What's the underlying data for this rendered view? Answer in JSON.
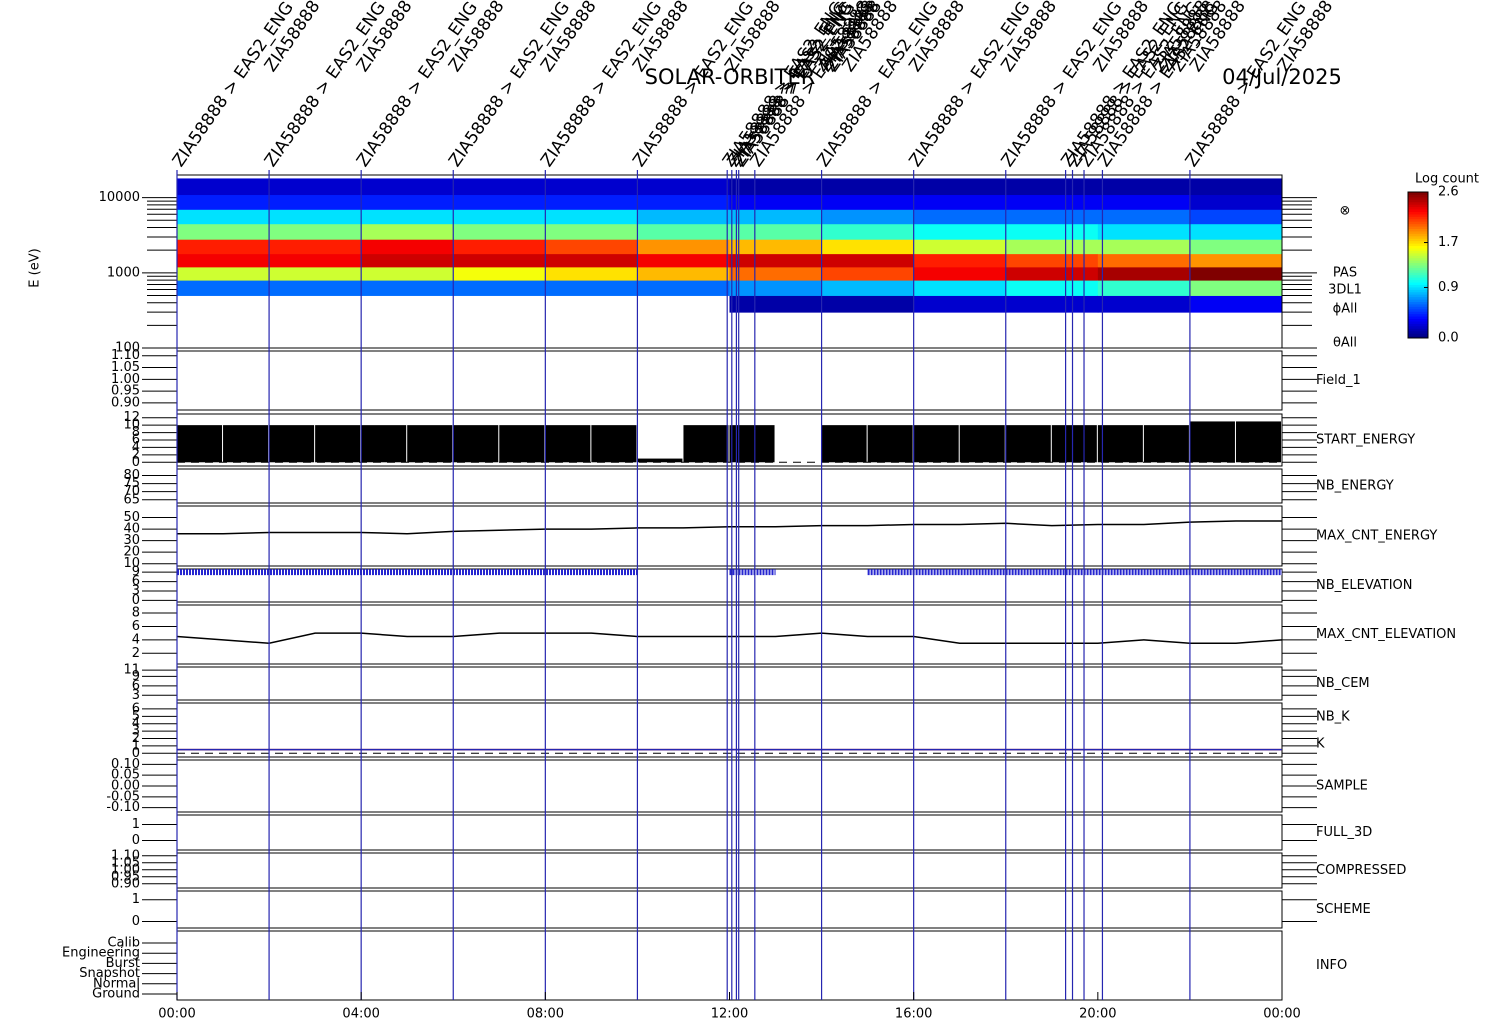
{
  "header": {
    "title": "SOLAR-ORBITER",
    "date": "04/Jul/2025"
  },
  "time_axis": {
    "xlim": [
      0,
      24
    ],
    "xticks": [
      {
        "value": 0,
        "label": "00:00"
      },
      {
        "value": 4,
        "label": "04:00"
      },
      {
        "value": 8,
        "label": "08:00"
      },
      {
        "value": 12,
        "label": "12:00"
      },
      {
        "value": 16,
        "label": "16:00"
      },
      {
        "value": 20,
        "label": "20:00"
      },
      {
        "value": 24,
        "label": "00:00"
      }
    ]
  },
  "events": [
    {
      "time": 0,
      "label": "ZIA58888 > EAS2_ENG"
    },
    {
      "time": 2,
      "label": "ZIA58888 > EAS2_ENG"
    },
    {
      "time": 4,
      "label": "ZIA58888 > EAS2_ENG"
    },
    {
      "time": 6,
      "label": "ZIA58888 > EAS2_ENG"
    },
    {
      "time": 8,
      "label": "ZIA58888 > EAS2_ENG"
    },
    {
      "time": 10,
      "label": "ZIA58888 > EAS2_ENG"
    },
    {
      "time": 11.95,
      "label": "ZIA58888 > EAS2_ENG"
    },
    {
      "time": 12.05,
      "label": "ZIA58888 > EAS2_ENG"
    },
    {
      "time": 12.15,
      "label": "ZIA58888 > EAS2_ENG"
    },
    {
      "time": 12.2,
      "label": "ZIA58888 > EAS2_ENG"
    },
    {
      "time": 12.55,
      "label": "ZIA58888 > EAS2_ENG"
    },
    {
      "time": 14,
      "label": "ZIA58888 > EAS2_ENG"
    },
    {
      "time": 16,
      "label": "ZIA58888 > EAS2_ENG"
    },
    {
      "time": 18,
      "label": "ZIA58888 > EAS2_ENG"
    },
    {
      "time": 19.3,
      "label": "ZIA58888 > EAS2_ENG"
    },
    {
      "time": 19.45,
      "label": "ZIA58888 > EAS2_ENG"
    },
    {
      "time": 19.7,
      "label": "ZIA58888 > EAS2_ENG"
    },
    {
      "time": 20.1,
      "label": "ZIA58888 > EAS2_ENG"
    },
    {
      "time": 22,
      "label": "ZIA58888 > EAS2_ENG"
    }
  ],
  "colorbar": {
    "title": "Log count",
    "clim": [
      0,
      2.6
    ],
    "ticks": [
      {
        "value": 0,
        "label": "0.0"
      },
      {
        "value": 0.9,
        "label": "0.9"
      },
      {
        "value": 1.7,
        "label": "1.7"
      },
      {
        "value": 2.6,
        "label": "2.6"
      }
    ]
  },
  "chart_data": [
    {
      "type": "heatmap",
      "ylabel": "E (eV)",
      "log_y": true,
      "ylim": [
        100,
        20000
      ],
      "yticks": [
        100,
        1000,
        10000
      ],
      "side_labels": [
        "⊗",
        "PAS",
        "3DL1",
        "ϕAll",
        "θAll"
      ],
      "x": [
        0,
        2,
        4,
        6,
        8,
        10,
        12,
        14,
        16,
        18,
        20,
        22,
        24
      ],
      "y": [
        300,
        500,
        800,
        1200,
        1800,
        2800,
        4500,
        7000,
        11000,
        18000
      ],
      "values": [
        [
          null,
          0.6,
          1.5,
          2.3,
          2.2,
          1.3,
          0.9,
          0.4,
          0.2
        ],
        [
          null,
          0.6,
          1.5,
          2.3,
          2.2,
          1.3,
          0.9,
          0.4,
          0.2
        ],
        [
          null,
          0.6,
          1.5,
          2.4,
          2.3,
          1.4,
          0.9,
          0.4,
          0.2
        ],
        [
          null,
          0.6,
          1.6,
          2.4,
          2.2,
          1.3,
          0.9,
          0.4,
          0.2
        ],
        [
          null,
          0.6,
          1.7,
          2.4,
          2.1,
          1.3,
          0.9,
          0.4,
          0.2
        ],
        [
          null,
          0.6,
          1.8,
          2.3,
          1.9,
          1.2,
          0.8,
          0.4,
          0.2
        ],
        [
          0.1,
          0.7,
          2.0,
          2.4,
          1.8,
          1.2,
          0.8,
          0.3,
          0.1
        ],
        [
          0.1,
          0.8,
          2.1,
          2.4,
          1.7,
          1.1,
          0.7,
          0.3,
          0.1
        ],
        [
          0.2,
          0.9,
          2.3,
          2.2,
          1.5,
          1.0,
          0.6,
          0.3,
          0.1
        ],
        [
          0.2,
          1.0,
          2.4,
          2.1,
          1.4,
          1.0,
          0.6,
          0.3,
          0.1
        ],
        [
          0.2,
          1.1,
          2.5,
          2.0,
          1.4,
          0.9,
          0.6,
          0.3,
          0.1
        ],
        [
          0.3,
          1.3,
          2.6,
          1.9,
          1.3,
          0.9,
          0.5,
          0.2,
          0.1
        ]
      ]
    },
    {
      "type": "line",
      "label": "Field_1",
      "label_color": "#2626b0",
      "ylim": [
        0.87,
        1.12
      ],
      "yticks": [
        {
          "value": 0.9,
          "label": "0.90"
        },
        {
          "value": 0.95,
          "label": "0.95"
        },
        {
          "value": 1,
          "label": "1.00"
        },
        {
          "value": 1.05,
          "label": "1.05"
        },
        {
          "value": 1.1,
          "label": "1.10"
        }
      ]
    },
    {
      "type": "bar",
      "label": "START_ENERGY",
      "label_color": "#000000",
      "ylim": [
        -1,
        13
      ],
      "yticks": [
        0,
        2,
        4,
        6,
        8,
        10,
        12
      ],
      "dashed_zero": true,
      "x": [
        0,
        1,
        2,
        3,
        4,
        5,
        6,
        7,
        8,
        9,
        10,
        11,
        12,
        13,
        14,
        15,
        16,
        17,
        18,
        19,
        20,
        21,
        22,
        23
      ],
      "values": [
        10,
        10,
        10,
        10,
        10,
        10,
        10,
        10,
        10,
        10,
        1,
        10,
        10,
        0,
        10,
        10,
        10,
        10,
        10,
        10,
        10,
        10,
        11,
        11
      ],
      "color": "#000000"
    },
    {
      "type": "line",
      "label": "NB_ENERGY",
      "label_color": "#2626b0",
      "ylim": [
        63,
        84
      ],
      "yticks": [
        65,
        70,
        75,
        80
      ]
    },
    {
      "type": "line",
      "label": "MAX_CNT_ENERGY",
      "label_color": "#000000",
      "ylim": [
        8,
        60
      ],
      "yticks": [
        10,
        20,
        30,
        40,
        50
      ],
      "x": [
        0,
        1,
        2,
        3,
        4,
        5,
        6,
        7,
        8,
        9,
        10,
        11,
        12,
        13,
        14,
        15,
        16,
        17,
        18,
        19,
        20,
        21,
        22,
        23,
        24
      ],
      "series": [
        {
          "color": "#000000",
          "values": [
            36,
            36,
            37,
            37,
            37,
            36,
            38,
            39,
            40,
            40,
            41,
            41,
            42,
            42,
            43,
            43,
            44,
            44,
            45,
            43,
            44,
            44,
            46,
            47,
            47
          ]
        }
      ]
    },
    {
      "type": "line",
      "label": "NB_ELEVATION",
      "label_color": "#2626b0",
      "ylim": [
        -0.5,
        10
      ],
      "yticks": [
        0,
        3,
        6,
        9
      ],
      "x": [
        0,
        1,
        2,
        3,
        4,
        5,
        6,
        7,
        8,
        9,
        10,
        11,
        12,
        13,
        14,
        15,
        16,
        17,
        18,
        19,
        20,
        21,
        22,
        23,
        24
      ],
      "series": [
        {
          "color": "#2626d0",
          "dashed": true,
          "values": [
            9,
            9,
            9,
            9,
            9,
            9,
            9,
            9,
            9,
            9,
            9,
            null,
            9,
            9,
            null,
            9,
            9,
            9,
            9,
            9,
            9,
            9,
            9,
            9,
            9
          ]
        }
      ]
    },
    {
      "type": "line",
      "label": "MAX_CNT_ELEVATION",
      "label_color": "#000000",
      "ylim": [
        0.4,
        9.2
      ],
      "yticks": [
        2,
        4,
        6,
        8
      ],
      "x": [
        0,
        1,
        2,
        3,
        4,
        5,
        6,
        7,
        8,
        9,
        10,
        11,
        12,
        13,
        14,
        15,
        16,
        17,
        18,
        19,
        20,
        21,
        22,
        23,
        24
      ],
      "series": [
        {
          "color": "#000000",
          "values": [
            4.5,
            4,
            3.5,
            5,
            5,
            4.5,
            4.5,
            5,
            5,
            5,
            4.5,
            4.5,
            4.5,
            4.5,
            5,
            4.5,
            4.5,
            3.5,
            3.5,
            3.5,
            3.5,
            4,
            3.5,
            3.5,
            4
          ]
        }
      ]
    },
    {
      "type": "line",
      "label": "NB_CEM",
      "label_color": "#2626b0",
      "ylim": [
        1.5,
        12
      ],
      "yticks": [
        3,
        6,
        9,
        11
      ]
    },
    {
      "type": "line",
      "ylim": [
        -0.5,
        6.8
      ],
      "yticks": [
        0,
        1,
        2,
        3,
        4,
        5,
        6
      ],
      "dashed_zero": true,
      "x": [
        0,
        24
      ],
      "series": [
        {
          "name": "NB_K",
          "color": "#c01010",
          "values": [
            0.5,
            0.5
          ]
        },
        {
          "name": "K",
          "color": "#2626b0",
          "values": [
            0.5,
            0.5
          ]
        }
      ]
    },
    {
      "type": "line",
      "label": "SAMPLE",
      "label_color": "#2626b0",
      "ylim": [
        -0.12,
        0.12
      ],
      "yticks": [
        {
          "value": -0.1,
          "label": "-0.10"
        },
        {
          "value": -0.05,
          "label": "-0.05"
        },
        {
          "value": 0,
          "label": "0.00"
        },
        {
          "value": 0.05,
          "label": "0.05"
        },
        {
          "value": 0.1,
          "label": "0.10"
        }
      ]
    },
    {
      "type": "line",
      "label": "FULL_3D",
      "label_color": "#2626b0",
      "ylim": [
        -0.6,
        1.6
      ],
      "yticks": [
        0,
        1
      ]
    },
    {
      "type": "line",
      "label": "COMPRESSED",
      "label_color": "#000000",
      "ylim": [
        0.87,
        1.12
      ],
      "yticks": [
        {
          "value": 0.9,
          "label": "0.90"
        },
        {
          "value": 0.95,
          "label": "0.95"
        },
        {
          "value": 1,
          "label": "1.00"
        },
        {
          "value": 1.05,
          "label": "1.05"
        },
        {
          "value": 1.1,
          "label": "1.10"
        }
      ]
    },
    {
      "type": "line",
      "label": "SCHEME",
      "label_color": "#000000",
      "ylim": [
        -0.3,
        1.4
      ],
      "yticks": [
        0,
        1
      ]
    },
    {
      "type": "category",
      "label": "INFO",
      "label_color": "#2626b0",
      "categories": [
        "Ground",
        "Normal",
        "Snapshot",
        "Burst",
        "Engineering",
        "Calib"
      ]
    }
  ]
}
